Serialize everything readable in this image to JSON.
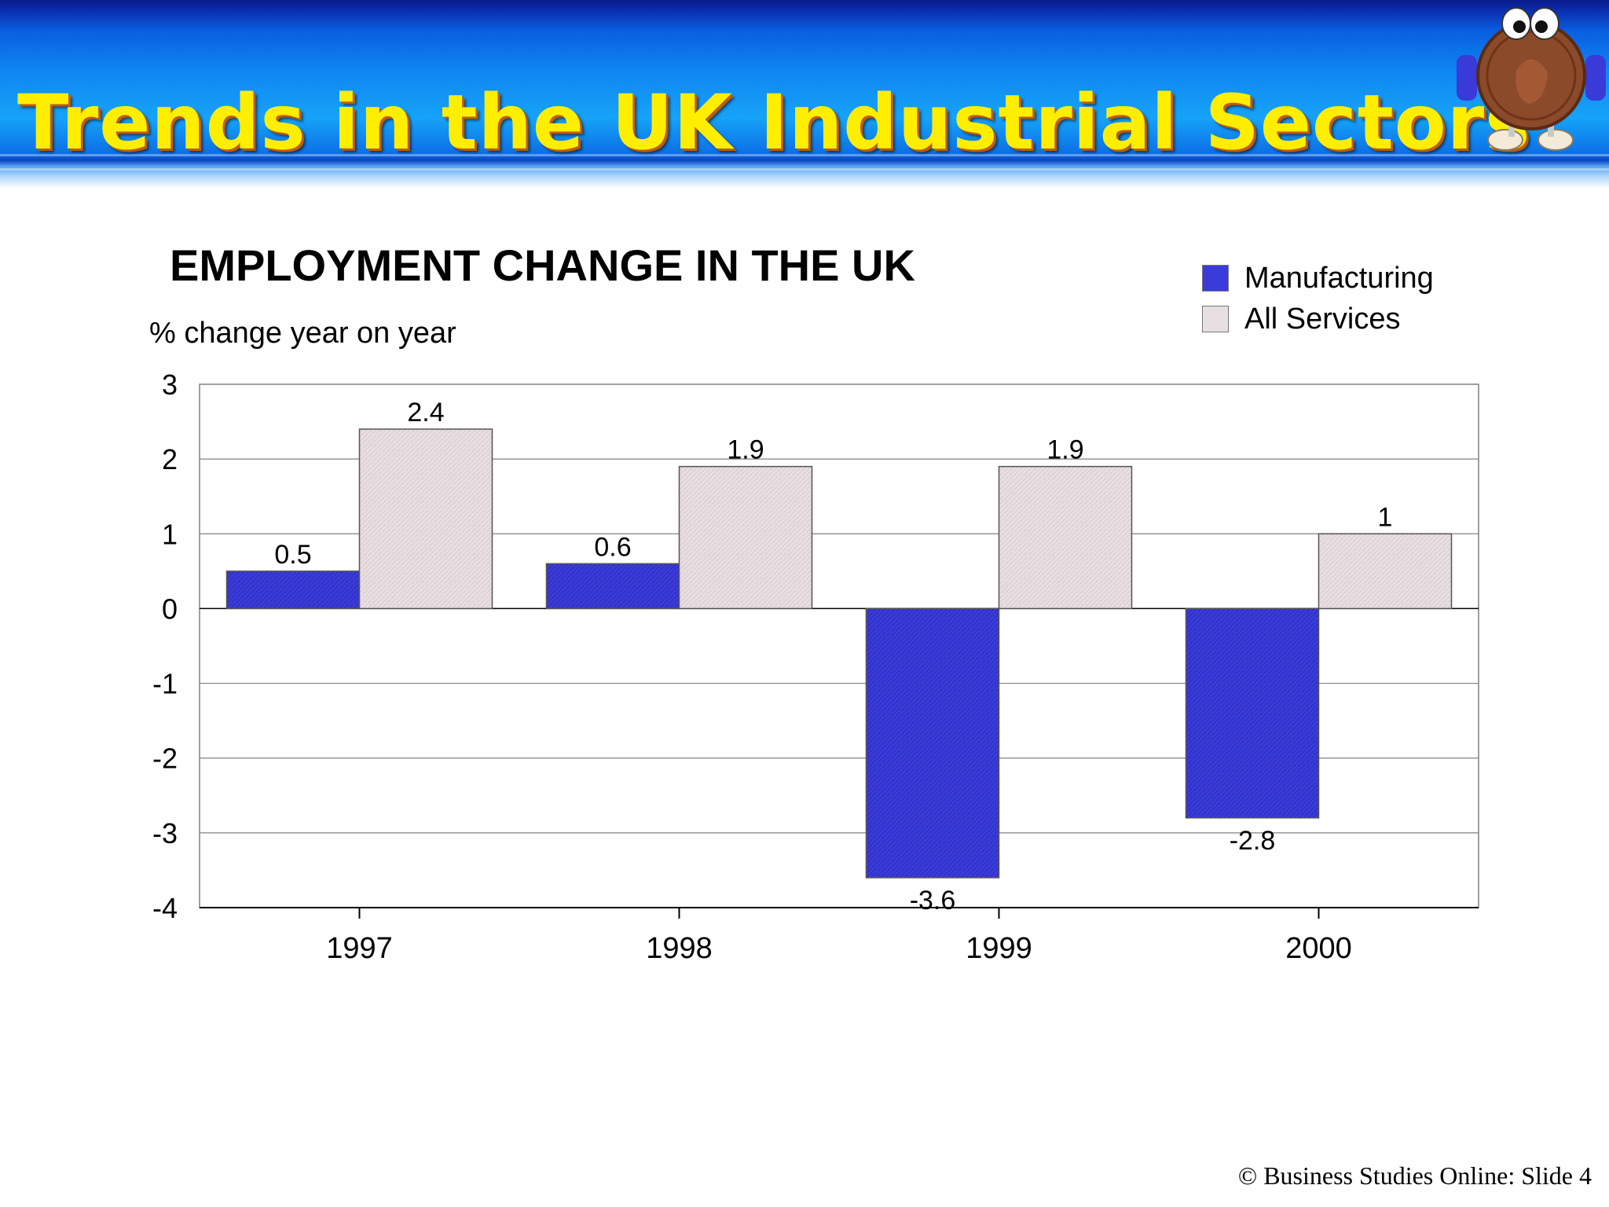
{
  "slide": {
    "title": "Trends in the UK Industrial Sectors",
    "footer": "© Business Studies Online: Slide 4"
  },
  "colors": {
    "manufacturing": "#3b3bdc",
    "services": "#e8dfe2",
    "title_text": "#ffee00",
    "banner": "#0f86f3"
  },
  "icons": {
    "mascot": "penny-mascot-icon"
  },
  "chart_data": {
    "type": "bar",
    "title": "EMPLOYMENT CHANGE IN THE UK",
    "ylabel": "% change year on year",
    "xlabel": "",
    "categories": [
      "1997",
      "1998",
      "1999",
      "2000"
    ],
    "series": [
      {
        "name": "Manufacturing",
        "values": [
          0.5,
          0.6,
          -3.6,
          -2.8
        ],
        "labels": [
          "0.5",
          "0.6",
          "-3.6",
          "-2.8"
        ]
      },
      {
        "name": "All Services",
        "values": [
          2.4,
          1.9,
          1.9,
          1.0
        ],
        "labels": [
          "2.4",
          "1.9",
          "1.9",
          "1"
        ]
      }
    ],
    "ylim": [
      -4,
      3
    ],
    "yticks": [
      3,
      2,
      1,
      0,
      -1,
      -2,
      -3,
      -4
    ],
    "grid": true,
    "legend": "top-right"
  }
}
